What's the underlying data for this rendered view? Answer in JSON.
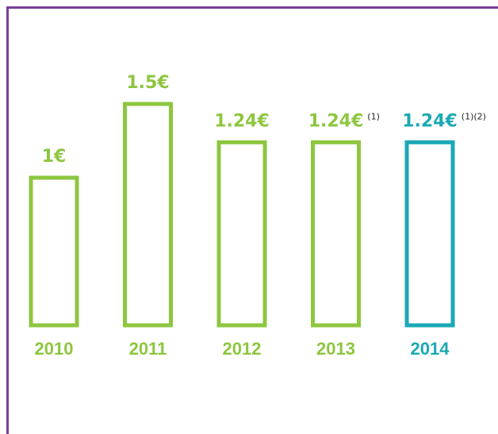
{
  "chart_data": {
    "type": "bar",
    "categories": [
      "2010",
      "2011",
      "2012",
      "2013",
      "2014"
    ],
    "values": [
      1,
      1.5,
      1.24,
      1.24,
      1.24
    ],
    "value_labels": [
      "1€",
      "1.5€",
      "1.24€",
      "1.24€",
      "1.24€"
    ],
    "notes": [
      null,
      null,
      null,
      "(1)",
      "(1)(2)"
    ],
    "colors": [
      "#8dc63f",
      "#8dc63f",
      "#8dc63f",
      "#8dc63f",
      "#1aa9b4"
    ]
  }
}
